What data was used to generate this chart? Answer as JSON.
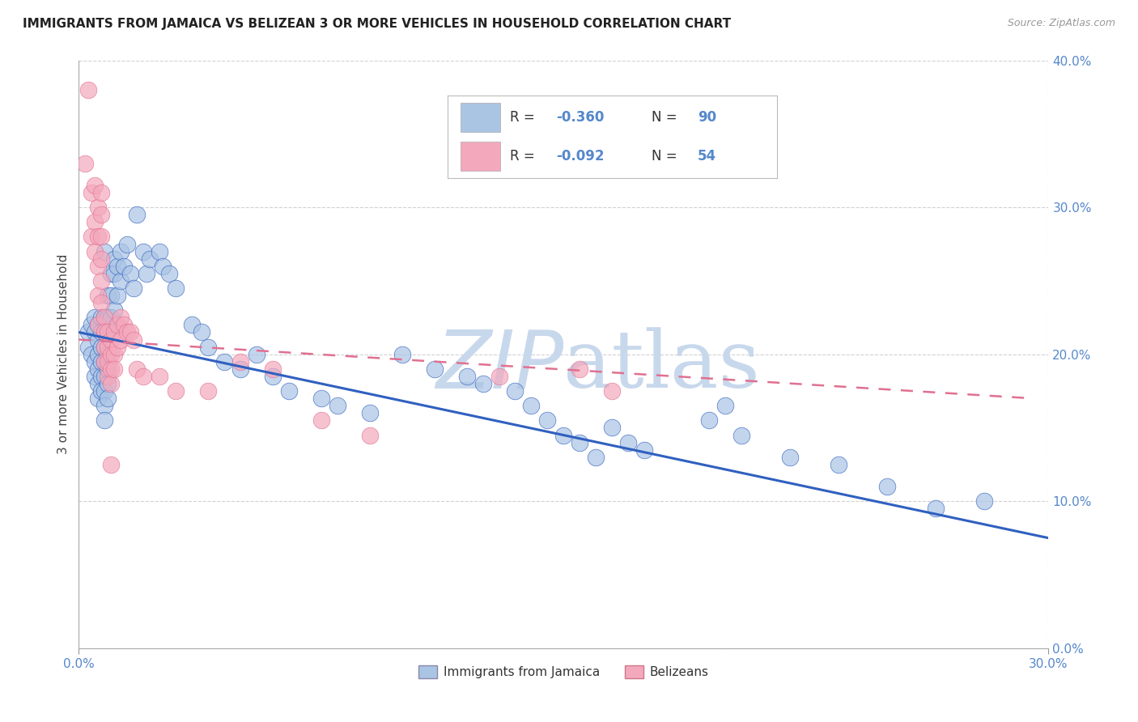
{
  "title": "IMMIGRANTS FROM JAMAICA VS BELIZEAN 3 OR MORE VEHICLES IN HOUSEHOLD CORRELATION CHART",
  "source_text": "Source: ZipAtlas.com",
  "ylabel_label": "3 or more Vehicles in Household",
  "xmin": 0.0,
  "xmax": 0.3,
  "ymin": 0.0,
  "ymax": 0.4,
  "legend_blue_label": "Immigrants from Jamaica",
  "legend_pink_label": "Belizeans",
  "legend_r_blue": "R = ",
  "legend_r_blue_val": "-0.360",
  "legend_n_blue": "   N = ",
  "legend_n_blue_val": "90",
  "legend_r_pink": "R = ",
  "legend_r_pink_val": "-0.092",
  "legend_n_pink": "   N = ",
  "legend_n_pink_val": "54",
  "blue_color": "#aac4e4",
  "pink_color": "#f4a8bc",
  "trend_blue_color": "#3060c0",
  "trend_pink_color": "#e07090",
  "tick_color": "#5588cc",
  "watermark_color": "#c8d8ec",
  "background_color": "#ffffff",
  "grid_color": "#cccccc",
  "blue_scatter": [
    [
      0.003,
      0.215
    ],
    [
      0.003,
      0.205
    ],
    [
      0.004,
      0.22
    ],
    [
      0.004,
      0.2
    ],
    [
      0.005,
      0.225
    ],
    [
      0.005,
      0.215
    ],
    [
      0.005,
      0.195
    ],
    [
      0.005,
      0.185
    ],
    [
      0.006,
      0.22
    ],
    [
      0.006,
      0.21
    ],
    [
      0.006,
      0.2
    ],
    [
      0.006,
      0.19
    ],
    [
      0.006,
      0.18
    ],
    [
      0.006,
      0.17
    ],
    [
      0.007,
      0.225
    ],
    [
      0.007,
      0.215
    ],
    [
      0.007,
      0.205
    ],
    [
      0.007,
      0.195
    ],
    [
      0.007,
      0.185
    ],
    [
      0.007,
      0.175
    ],
    [
      0.008,
      0.27
    ],
    [
      0.008,
      0.225
    ],
    [
      0.008,
      0.215
    ],
    [
      0.008,
      0.205
    ],
    [
      0.008,
      0.195
    ],
    [
      0.008,
      0.185
    ],
    [
      0.008,
      0.175
    ],
    [
      0.008,
      0.165
    ],
    [
      0.008,
      0.155
    ],
    [
      0.009,
      0.24
    ],
    [
      0.009,
      0.225
    ],
    [
      0.009,
      0.215
    ],
    [
      0.009,
      0.2
    ],
    [
      0.009,
      0.19
    ],
    [
      0.009,
      0.18
    ],
    [
      0.009,
      0.17
    ],
    [
      0.01,
      0.255
    ],
    [
      0.01,
      0.24
    ],
    [
      0.01,
      0.225
    ],
    [
      0.01,
      0.215
    ],
    [
      0.011,
      0.265
    ],
    [
      0.011,
      0.255
    ],
    [
      0.011,
      0.23
    ],
    [
      0.012,
      0.26
    ],
    [
      0.012,
      0.24
    ],
    [
      0.012,
      0.22
    ],
    [
      0.013,
      0.27
    ],
    [
      0.013,
      0.25
    ],
    [
      0.014,
      0.26
    ],
    [
      0.015,
      0.275
    ],
    [
      0.016,
      0.255
    ],
    [
      0.017,
      0.245
    ],
    [
      0.018,
      0.295
    ],
    [
      0.02,
      0.27
    ],
    [
      0.021,
      0.255
    ],
    [
      0.022,
      0.265
    ],
    [
      0.025,
      0.27
    ],
    [
      0.026,
      0.26
    ],
    [
      0.028,
      0.255
    ],
    [
      0.03,
      0.245
    ],
    [
      0.035,
      0.22
    ],
    [
      0.038,
      0.215
    ],
    [
      0.04,
      0.205
    ],
    [
      0.045,
      0.195
    ],
    [
      0.05,
      0.19
    ],
    [
      0.055,
      0.2
    ],
    [
      0.06,
      0.185
    ],
    [
      0.065,
      0.175
    ],
    [
      0.075,
      0.17
    ],
    [
      0.08,
      0.165
    ],
    [
      0.09,
      0.16
    ],
    [
      0.1,
      0.2
    ],
    [
      0.11,
      0.19
    ],
    [
      0.12,
      0.185
    ],
    [
      0.125,
      0.18
    ],
    [
      0.135,
      0.175
    ],
    [
      0.14,
      0.165
    ],
    [
      0.145,
      0.155
    ],
    [
      0.15,
      0.145
    ],
    [
      0.155,
      0.14
    ],
    [
      0.16,
      0.13
    ],
    [
      0.165,
      0.15
    ],
    [
      0.17,
      0.14
    ],
    [
      0.175,
      0.135
    ],
    [
      0.195,
      0.155
    ],
    [
      0.2,
      0.165
    ],
    [
      0.205,
      0.145
    ],
    [
      0.22,
      0.13
    ],
    [
      0.235,
      0.125
    ],
    [
      0.25,
      0.11
    ],
    [
      0.265,
      0.095
    ],
    [
      0.28,
      0.1
    ]
  ],
  "pink_scatter": [
    [
      0.002,
      0.33
    ],
    [
      0.003,
      0.38
    ],
    [
      0.004,
      0.31
    ],
    [
      0.004,
      0.28
    ],
    [
      0.005,
      0.315
    ],
    [
      0.005,
      0.29
    ],
    [
      0.005,
      0.27
    ],
    [
      0.006,
      0.3
    ],
    [
      0.006,
      0.28
    ],
    [
      0.006,
      0.26
    ],
    [
      0.006,
      0.24
    ],
    [
      0.006,
      0.22
    ],
    [
      0.007,
      0.31
    ],
    [
      0.007,
      0.295
    ],
    [
      0.007,
      0.28
    ],
    [
      0.007,
      0.265
    ],
    [
      0.007,
      0.25
    ],
    [
      0.007,
      0.235
    ],
    [
      0.008,
      0.225
    ],
    [
      0.008,
      0.215
    ],
    [
      0.008,
      0.205
    ],
    [
      0.008,
      0.195
    ],
    [
      0.009,
      0.215
    ],
    [
      0.009,
      0.205
    ],
    [
      0.009,
      0.195
    ],
    [
      0.009,
      0.185
    ],
    [
      0.01,
      0.21
    ],
    [
      0.01,
      0.2
    ],
    [
      0.01,
      0.19
    ],
    [
      0.01,
      0.18
    ],
    [
      0.01,
      0.125
    ],
    [
      0.011,
      0.215
    ],
    [
      0.011,
      0.2
    ],
    [
      0.011,
      0.19
    ],
    [
      0.012,
      0.22
    ],
    [
      0.012,
      0.205
    ],
    [
      0.013,
      0.225
    ],
    [
      0.013,
      0.21
    ],
    [
      0.014,
      0.22
    ],
    [
      0.015,
      0.215
    ],
    [
      0.016,
      0.215
    ],
    [
      0.017,
      0.21
    ],
    [
      0.018,
      0.19
    ],
    [
      0.02,
      0.185
    ],
    [
      0.025,
      0.185
    ],
    [
      0.03,
      0.175
    ],
    [
      0.04,
      0.175
    ],
    [
      0.05,
      0.195
    ],
    [
      0.06,
      0.19
    ],
    [
      0.075,
      0.155
    ],
    [
      0.09,
      0.145
    ],
    [
      0.13,
      0.185
    ],
    [
      0.155,
      0.19
    ],
    [
      0.165,
      0.175
    ]
  ],
  "blue_trend_x": [
    0.0,
    0.3
  ],
  "blue_trend_y": [
    0.215,
    0.075
  ],
  "pink_trend_x": [
    0.0,
    0.295
  ],
  "pink_trend_y": [
    0.21,
    0.17
  ],
  "figsize": [
    14.06,
    8.92
  ],
  "dpi": 100
}
